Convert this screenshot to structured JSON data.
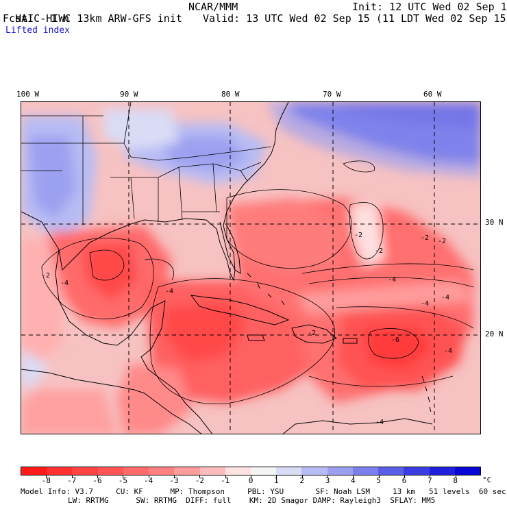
{
  "header": {
    "title": "HAIC-HIWC 13km ARW-GFS init",
    "org": "NCAR/MMM",
    "init": "Init: 12 UTC Wed 02 Sep 15",
    "fcst_label": "Fcst:",
    "fcst_value": "1 h",
    "valid": "Valid: 13 UTC Wed 02 Sep 15 (11 LDT Wed 02 Sep 15)",
    "field": "Lifted index"
  },
  "map": {
    "lon_labels": [
      "100 W",
      "90 W",
      "80 W",
      "70 W",
      "60 W"
    ],
    "lat_labels": [
      "30 N",
      "20 N"
    ],
    "contour_labels": [
      "-2",
      "-2",
      "-2",
      "-2",
      "-2",
      "-4",
      "-4",
      "-4",
      "-4",
      "-4",
      "-4",
      "-6",
      "-4",
      "-2"
    ]
  },
  "colorbar": {
    "labels": [
      "-8",
      "-7",
      "-6",
      "-5",
      "-4",
      "-3",
      "-2",
      "-1",
      "0",
      "1",
      "2",
      "3",
      "4",
      "5",
      "6",
      "7",
      "8"
    ],
    "unit": "°C",
    "colors": [
      "#ff1a1a",
      "#ff3030",
      "#ff4444",
      "#ff5555",
      "#ff6a6a",
      "#ff8080",
      "#ff9c9c",
      "#ffbcbc",
      "#ffe2e2",
      "#f4f4f4",
      "#dadcf6",
      "#b8bcf4",
      "#9ca0f0",
      "#7c80ec",
      "#5a5ee6",
      "#3a3ee0",
      "#2020dc",
      "#0808d4"
    ]
  },
  "model_info": {
    "line1": "Model Info: V3.7     CU: KF      MP: Thompson     PBL: YSU       SF: Noah LSM     13 km   51 levels  60 sec",
    "line2": "LW: RRTMG      SW: RRTMG  DIFF: full    KM: 2D Smagor DAMP: Rayleigh3  SFLAY: MM5"
  }
}
